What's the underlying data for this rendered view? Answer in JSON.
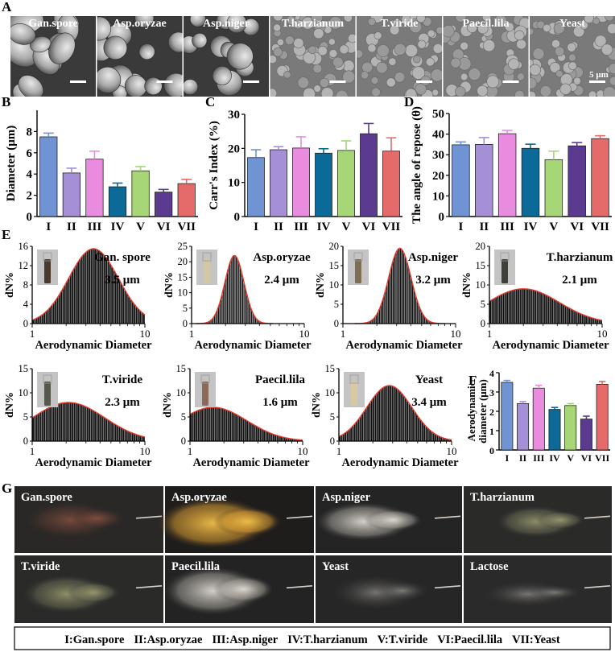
{
  "colors": {
    "I": "#6f93d3",
    "II": "#a58fd6",
    "III": "#e98ce0",
    "IV": "#0b6a98",
    "V": "#a7d676",
    "VI": "#5a3b8f",
    "VII": "#e56a6a",
    "curve": "#e83a2a"
  },
  "panel_letters": {
    "A": "A",
    "B": "B",
    "C": "C",
    "D": "D",
    "E": "E",
    "F": "F",
    "G": "G"
  },
  "sem": {
    "labels": [
      "Gan.spore",
      "Asp.oryzae",
      "Asp.niger",
      "T.harzianum",
      "T.viride",
      "Paecil.lila",
      "Yeast"
    ],
    "scale_label": "5 μm"
  },
  "plume": {
    "labels": [
      "Gan.spore",
      "Asp.oryzae",
      "Asp.niger",
      "T.harzianum",
      "T.viride",
      "Paecil.lila",
      "Yeast",
      "Lactose"
    ]
  },
  "legend": {
    "items": [
      "I:Gan.spore",
      "II:Asp.oryzae",
      "III:Asp.niger",
      "IV:T.harzianum",
      "V:T.viride",
      "VI:Paecil.lila",
      "VII:Yeast"
    ]
  },
  "chart_data": [
    {
      "id": "B",
      "type": "bar",
      "ylabel": "Diameter (μm)",
      "categories": [
        "I",
        "II",
        "III",
        "IV",
        "V",
        "VI",
        "VII"
      ],
      "values": [
        7.5,
        4.1,
        5.4,
        2.8,
        4.3,
        2.3,
        3.1
      ],
      "errors": [
        0.35,
        0.45,
        0.75,
        0.35,
        0.4,
        0.25,
        0.4
      ],
      "ylim": [
        0,
        10
      ],
      "yticks": [
        0,
        2,
        4,
        6,
        8
      ]
    },
    {
      "id": "C",
      "type": "bar",
      "ylabel": "Carr's Index (%)",
      "categories": [
        "I",
        "II",
        "III",
        "IV",
        "V",
        "VI",
        "VII"
      ],
      "values": [
        17.3,
        19.6,
        20.1,
        18.6,
        19.4,
        24.3,
        19.2
      ],
      "errors": [
        2.3,
        0.9,
        3.3,
        1.3,
        2.8,
        3.0,
        3.9
      ],
      "ylim": [
        0,
        30
      ],
      "yticks": [
        0,
        10,
        20,
        30
      ]
    },
    {
      "id": "D",
      "type": "bar",
      "ylabel": "The angle of repose (θ)",
      "categories": [
        "I",
        "II",
        "III",
        "IV",
        "V",
        "VI",
        "VII"
      ],
      "values": [
        34.8,
        35.0,
        40.2,
        33.1,
        27.6,
        34.3,
        37.8
      ],
      "errors": [
        1.4,
        3.3,
        1.6,
        2.0,
        4.1,
        1.6,
        1.4
      ],
      "ylim": [
        0,
        50
      ],
      "yticks": [
        0,
        10,
        20,
        30,
        40,
        50
      ]
    },
    {
      "id": "F",
      "type": "bar",
      "ylabel": "Aerodynamic diameter (μm)",
      "categories": [
        "I",
        "II",
        "III",
        "IV",
        "V",
        "VI",
        "VII"
      ],
      "values": [
        3.5,
        2.4,
        3.2,
        2.1,
        2.3,
        1.6,
        3.4
      ],
      "errors": [
        0.1,
        0.1,
        0.15,
        0.1,
        0.1,
        0.15,
        0.15
      ],
      "ylim": [
        0,
        4
      ],
      "yticks": [
        0,
        1,
        2,
        3,
        4
      ]
    },
    {
      "id": "E",
      "type": "histogram",
      "xscale": "log",
      "xlabel": "Aerodynamic Diameter",
      "ylabel": "dN%",
      "xticks": [
        1,
        10
      ],
      "panels": [
        {
          "name": "Gan. spore",
          "mmad": "3.5 μm",
          "peak_x": 3.5,
          "peak_y": 15.5,
          "sigma": 0.22,
          "ylim": [
            0,
            16
          ],
          "yticks": [
            0,
            4,
            8,
            12,
            16
          ],
          "vial": "#4a3a2e"
        },
        {
          "name": "Asp.oryzae",
          "mmad": "2.4 μm",
          "peak_x": 2.4,
          "peak_y": 22,
          "sigma": 0.085,
          "ylim": [
            0,
            25
          ],
          "yticks": [
            0,
            5,
            10,
            15,
            20,
            25
          ],
          "vial": "#d4c7a4"
        },
        {
          "name": "Asp.niger",
          "mmad": "3.2 μm",
          "peak_x": 3.2,
          "peak_y": 19.5,
          "sigma": 0.1,
          "ylim": [
            0,
            20
          ],
          "yticks": [
            0,
            5,
            10,
            15,
            20
          ],
          "vial": "#7d6e54"
        },
        {
          "name": "T.harzianum",
          "mmad": "2.1 μm",
          "peak_x": 2.0,
          "peak_y": 9,
          "sigma": 0.32,
          "ylim": [
            0,
            20
          ],
          "yticks": [
            0,
            5,
            10,
            15,
            20
          ],
          "vial": "#3f3f3a"
        },
        {
          "name": "T.viride",
          "mmad": "2.3 μm",
          "peak_x": 2.1,
          "peak_y": 8,
          "sigma": 0.32,
          "ylim": [
            0,
            15
          ],
          "yticks": [
            0,
            5,
            10,
            15
          ],
          "vial": "#55584a"
        },
        {
          "name": "Paecil.lila",
          "mmad": "1.6 μm",
          "peak_x": 1.6,
          "peak_y": 7,
          "sigma": 0.3,
          "ylim": [
            0,
            15
          ],
          "yticks": [
            0,
            5,
            10,
            15
          ],
          "vial": "#8a6a5a"
        },
        {
          "name": "Yeast",
          "mmad": "3.4 μm",
          "peak_x": 2.8,
          "peak_y": 11.5,
          "sigma": 0.2,
          "ylim": [
            0,
            15
          ],
          "yticks": [
            0,
            5,
            10,
            15
          ],
          "vial": "#d8c9a2"
        }
      ]
    }
  ]
}
